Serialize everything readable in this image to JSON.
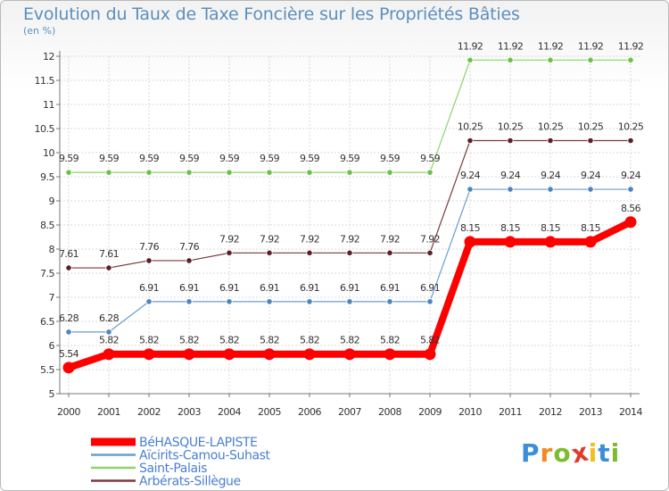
{
  "header": {
    "title": "Evolution du Taux de Taxe Foncière sur les Propriétés Bâties",
    "unit": "(en %)"
  },
  "logo": {
    "letters": [
      "P",
      "r",
      "o",
      "x",
      "i",
      "t",
      "i"
    ],
    "colors": [
      "#3b8fd8",
      "#f08a24",
      "#7dbb2f",
      "#e03a2f",
      "#f0c020",
      "#3b8fd8",
      "#7dbb2f"
    ]
  },
  "chart_data": {
    "type": "line",
    "title": "Evolution du Taux de Taxe Foncière sur les Propriétés Bâties",
    "ylabel": "(en %)",
    "xlabel": "",
    "x": [
      "2000",
      "2001",
      "2002",
      "2003",
      "2004",
      "2005",
      "2006",
      "2007",
      "2008",
      "2009",
      "2010",
      "2011",
      "2012",
      "2013",
      "2014"
    ],
    "ylim": [
      5,
      12
    ],
    "yticks": [
      "5",
      "5.5",
      "6",
      "6.5",
      "7",
      "7.5",
      "8",
      "8.5",
      "9",
      "9.5",
      "10",
      "10.5",
      "11",
      "11.5",
      "12"
    ],
    "grid": true,
    "legend_position": "bottom-left",
    "series": [
      {
        "name": "Saint-Palais",
        "color": "#8ed36a",
        "point_color": "#6cc14a",
        "width": 1.2,
        "values": [
          9.59,
          9.59,
          9.59,
          9.59,
          9.59,
          9.59,
          9.59,
          9.59,
          9.59,
          9.59,
          11.92,
          11.92,
          11.92,
          11.92,
          11.92
        ],
        "labels": [
          "9.59",
          "9.59",
          "9.59",
          "9.59",
          "9.59",
          "9.59",
          "9.59",
          "9.59",
          "9.59",
          "9.59",
          "11.92",
          "11.92",
          "11.92",
          "11.92",
          "11.92"
        ]
      },
      {
        "name": "Arbérats-Sillègue",
        "color": "#7a3a3f",
        "point_color": "#5e1f24",
        "width": 1.2,
        "values": [
          7.61,
          7.61,
          7.76,
          7.76,
          7.92,
          7.92,
          7.92,
          7.92,
          7.92,
          7.92,
          10.25,
          10.25,
          10.25,
          10.25,
          10.25
        ],
        "labels": [
          "7.61",
          "7.61",
          "7.76",
          "7.76",
          "7.92",
          "7.92",
          "7.92",
          "7.92",
          "7.92",
          "7.92",
          "10.25",
          "10.25",
          "10.25",
          "10.25",
          "10.25"
        ]
      },
      {
        "name": "Aïcirits-Camou-Suhast",
        "color": "#6a9ccc",
        "point_color": "#4a86c0",
        "width": 1.2,
        "values": [
          6.28,
          6.28,
          6.91,
          6.91,
          6.91,
          6.91,
          6.91,
          6.91,
          6.91,
          6.91,
          9.24,
          9.24,
          9.24,
          9.24,
          9.24
        ],
        "labels": [
          "6.28",
          "6.28",
          "6.91",
          "6.91",
          "6.91",
          "6.91",
          "6.91",
          "6.91",
          "6.91",
          "6.91",
          "9.24",
          "9.24",
          "9.24",
          "9.24",
          "9.24"
        ]
      },
      {
        "name": "BéHASQUE-LAPISTE",
        "color": "#ff0000",
        "point_color": "#ff0000",
        "width": 8,
        "values": [
          5.54,
          5.82,
          5.82,
          5.82,
          5.82,
          5.82,
          5.82,
          5.82,
          5.82,
          5.82,
          8.15,
          8.15,
          8.15,
          8.15,
          8.56
        ],
        "labels": [
          "5.54",
          "5.82",
          "5.82",
          "5.82",
          "5.82",
          "5.82",
          "5.82",
          "5.82",
          "5.82",
          "5.82",
          "8.15",
          "8.15",
          "8.15",
          "8.15",
          "8.56"
        ]
      }
    ],
    "legend": [
      "BéHASQUE-LAPISTE",
      "Aïcirits-Camou-Suhast",
      "Saint-Palais",
      "Arbérats-Sillègue"
    ]
  }
}
